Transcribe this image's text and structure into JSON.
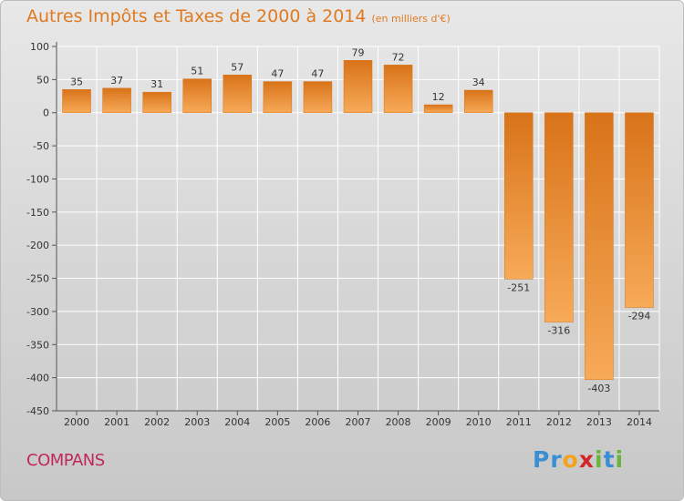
{
  "header": {
    "title": "Autres Impôts et Taxes de 2000 à 2014",
    "unit": "(en milliers d'€)"
  },
  "footer": {
    "commune": "COMPANS"
  },
  "logo": {
    "letters": [
      "P",
      "r",
      "o",
      "x",
      "i",
      "t",
      "i"
    ],
    "colors": [
      "#3a8ed4",
      "#3a8ed4",
      "#f4a21b",
      "#d2262b",
      "#6ab43e",
      "#3a8ed4",
      "#6ab43e"
    ]
  },
  "colors": {
    "bar_light": "#f7aa58",
    "bar_dark": "#d87319",
    "text": "#333333",
    "grid": "#ffffff"
  },
  "chart_data": {
    "type": "bar",
    "title": "Autres Impôts et Taxes de 2000 à 2014",
    "subtitle": "(en milliers d'€)",
    "categories": [
      "2000",
      "2001",
      "2002",
      "2003",
      "2004",
      "2005",
      "2006",
      "2007",
      "2008",
      "2009",
      "2010",
      "2011",
      "2012",
      "2013",
      "2014"
    ],
    "values": [
      35,
      37,
      31,
      51,
      57,
      47,
      47,
      79,
      72,
      12,
      34,
      -251,
      -316,
      -403,
      -294
    ],
    "ylim": [
      -450,
      100
    ],
    "yticks": [
      100,
      50,
      0,
      -50,
      -100,
      -150,
      -200,
      -250,
      -300,
      -350,
      -400,
      -450
    ],
    "grid": true
  }
}
